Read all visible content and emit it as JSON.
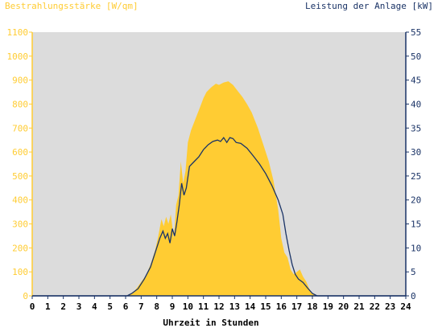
{
  "chart_data": {
    "type": "area",
    "left_axis_title": "Bestrahlungsstärke [W/qm]",
    "right_axis_title": "Leistung der Anlage [kW]",
    "xlabel": "Uhrzeit in Stunden",
    "xlim": [
      0,
      24
    ],
    "x_ticks": [
      "0",
      "1",
      "2",
      "3",
      "4",
      "5",
      "6",
      "7",
      "8",
      "9",
      "10",
      "11",
      "12",
      "13",
      "14",
      "15",
      "16",
      "17",
      "18",
      "19",
      "20",
      "21",
      "22",
      "23",
      "24"
    ],
    "ylim_left": [
      0,
      1100
    ],
    "y_ticks_left": [
      "0",
      "100",
      "200",
      "300",
      "400",
      "500",
      "600",
      "700",
      "800",
      "900",
      "1000",
      "1100"
    ],
    "ylim_right": [
      0,
      55
    ],
    "y_ticks_right": [
      "0",
      "5",
      "10",
      "15",
      "20",
      "25",
      "30",
      "35",
      "40",
      "45",
      "50",
      "55"
    ],
    "grid": false,
    "colors": {
      "plot_background": "#dcdcdc",
      "irradiance_fill": "#ffcc33",
      "power_line": "#1a3366",
      "left_axis_text": "#ffcc33",
      "right_axis_text": "#1a3366",
      "x_axis_text": "#000000"
    },
    "series": [
      {
        "name": "Bestrahlungsstärke [W/qm]",
        "axis": "left",
        "x": [
          0,
          6.0,
          6.3,
          6.6,
          7.0,
          7.3,
          7.6,
          7.9,
          8.1,
          8.3,
          8.45,
          8.6,
          8.75,
          8.9,
          9.1,
          9.25,
          9.4,
          9.55,
          9.7,
          9.85,
          10.0,
          10.2,
          10.5,
          10.8,
          11.0,
          11.2,
          11.5,
          11.8,
          12.0,
          12.3,
          12.6,
          12.9,
          13.2,
          13.5,
          13.8,
          14.1,
          14.5,
          14.9,
          15.2,
          15.5,
          15.8,
          16.0,
          16.2,
          16.4,
          16.6,
          16.8,
          17.0,
          17.2,
          17.4,
          17.6,
          17.8,
          18.0,
          18.2,
          18.4,
          24
        ],
        "values": [
          0,
          0,
          8,
          22,
          58,
          85,
          130,
          190,
          250,
          320,
          290,
          330,
          300,
          340,
          240,
          380,
          420,
          560,
          470,
          520,
          640,
          690,
          740,
          790,
          825,
          850,
          870,
          885,
          880,
          890,
          895,
          880,
          855,
          830,
          800,
          765,
          700,
          620,
          560,
          480,
          360,
          240,
          180,
          160,
          110,
          90,
          100,
          110,
          80,
          60,
          30,
          10,
          3,
          0,
          0
        ]
      },
      {
        "name": "Leistung der Anlage [kW]",
        "axis": "right",
        "x": [
          0,
          6.1,
          6.4,
          6.8,
          7.2,
          7.6,
          7.9,
          8.2,
          8.4,
          8.55,
          8.7,
          8.85,
          9.0,
          9.15,
          9.3,
          9.45,
          9.6,
          9.75,
          9.9,
          10.1,
          10.4,
          10.7,
          11.0,
          11.3,
          11.6,
          11.9,
          12.1,
          12.3,
          12.5,
          12.7,
          12.9,
          13.1,
          13.4,
          13.8,
          14.2,
          14.6,
          15.0,
          15.4,
          15.8,
          16.1,
          16.3,
          16.5,
          16.7,
          16.9,
          17.1,
          17.4,
          17.7,
          18.0,
          18.3,
          24
        ],
        "values": [
          0,
          0,
          0.5,
          1.5,
          3.5,
          6,
          9,
          12,
          13.5,
          12,
          13,
          11,
          14,
          12.5,
          15.5,
          19,
          23.5,
          21,
          22.5,
          27,
          28,
          29,
          30.5,
          31.5,
          32.2,
          32.5,
          32.2,
          33,
          32,
          33,
          32.8,
          32,
          31.8,
          30.8,
          29.2,
          27.5,
          25.5,
          23,
          20,
          17,
          13,
          9.5,
          6.5,
          4.5,
          3.5,
          2.8,
          1.6,
          0.5,
          0,
          0
        ]
      }
    ]
  }
}
